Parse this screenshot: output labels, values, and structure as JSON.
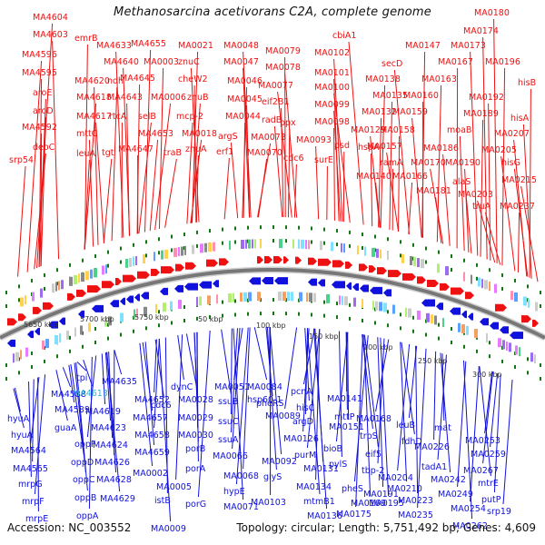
{
  "title": "Methanosarcina acetivorans C2A, complete genome",
  "footer": {
    "accession": "Accession: NC_003552",
    "summary": "Topology: circular; Length: 5,751,492 bp; Genes: 4,609"
  },
  "colors": {
    "forward_gene": "#ee1111",
    "reverse_gene": "#1111dd",
    "highlight_label": "#29b6d8",
    "backbone": "#777777",
    "tick_green": "#117711"
  },
  "scale_labels": [
    "5650 kbp",
    "5700 kbp",
    "5750 kbp",
    "50 kbp",
    "100 kbp",
    "150 kbp",
    "200 kbp",
    "250 kbp",
    "300 kbp"
  ],
  "top_labels": [
    "MA4604",
    "MA4603",
    "MA4596",
    "MA4595",
    "aroE",
    "aroD",
    "MA4592",
    "deoC",
    "srp54",
    "emrB",
    "MA4633",
    "MA4620",
    "MA4618",
    "MA4617",
    "mttC",
    "leuA",
    "MA4640",
    "ndh",
    "rtcA",
    "tgt",
    "MA4643",
    "MA4645",
    "MA4647",
    "MA4655",
    "selB",
    "MA4653",
    "MA0003",
    "MA0006",
    "traB",
    "MA0021",
    "znuC",
    "cheW2",
    "znuB",
    "mcp-2",
    "MA0018",
    "znuA",
    "MA0048",
    "MA0047",
    "MA0046",
    "MA0045",
    "MA0044",
    "argS",
    "erf1",
    "MA0079",
    "MA0078",
    "MA0077",
    "eif2B1",
    "radB",
    "ppx",
    "MA0073",
    "MA0070",
    "cdc6",
    "cbiA1",
    "MA0102",
    "MA0101",
    "MA0100",
    "MA0099",
    "MA0098",
    "MA0093",
    "psd",
    "surE",
    "MA0147",
    "secD",
    "MA0138",
    "MA0135",
    "MA0132",
    "MA0129",
    "hspA",
    "MA0140",
    "MA0180",
    "MA0174",
    "MA0173",
    "MA0167",
    "MA0163",
    "MA0160",
    "MA0159",
    "MA0158",
    "MA0157",
    "ramA",
    "MA0166",
    "MA0170",
    "MA0181",
    "MA0196",
    "MA0192",
    "MA0189",
    "moaB",
    "MA0186",
    "MA0190",
    "alaS",
    "MA0203",
    "truA",
    "hisB",
    "hisA",
    "MA0207",
    "MA0205",
    "hisG",
    "MA0215",
    "MA0237"
  ],
  "bottom_labels": [
    "hyuA",
    "hyuA",
    "MA4564",
    "MA4565",
    "mrpG",
    "mrpF",
    "mrpE",
    "MA4588",
    "MA4589",
    "tpi",
    "MA4613",
    "guaA",
    "oppF",
    "oppD",
    "oppC",
    "oppB",
    "oppA",
    "MA4635",
    "MA4619",
    "MA4623",
    "MA4624",
    "MA4626",
    "MA4628",
    "MA4629",
    "cdc6",
    "MA4652",
    "MA4657",
    "MA4658",
    "MA4659",
    "MA0002",
    "MA0005",
    "istB",
    "MA0009",
    "dynC",
    "MA0028",
    "MA0029",
    "MA0030",
    "porB",
    "porA",
    "porG",
    "MA0051",
    "ssuB",
    "ssuC",
    "ssuA",
    "MA0066",
    "MA0068",
    "hypE",
    "MA0071",
    "MA0084",
    "hsp60-1",
    "pheRS",
    "MA0089",
    "MA0092",
    "glyS",
    "MA0103",
    "pcnA",
    "hisC",
    "argD",
    "MA0126",
    "purM",
    "MA0131",
    "MA0134",
    "mtmB1",
    "MA0136",
    "MA0141",
    "mttP",
    "MA0151",
    "bioB",
    "pylS",
    "pheS",
    "MA0169",
    "MA0175",
    "MA0168",
    "trpS",
    "eif5",
    "tbp-2",
    "MA0191",
    "MA0195",
    "MA0204",
    "MA0210",
    "MA0223",
    "MA0235",
    "leuB",
    "fdhD",
    "MA0226",
    "tadA1",
    "MA0242",
    "MA0249",
    "MA0254",
    "MA0262",
    "mat",
    "MA0253",
    "MA0259",
    "MA0267",
    "mtrE",
    "putP",
    "srp19"
  ]
}
